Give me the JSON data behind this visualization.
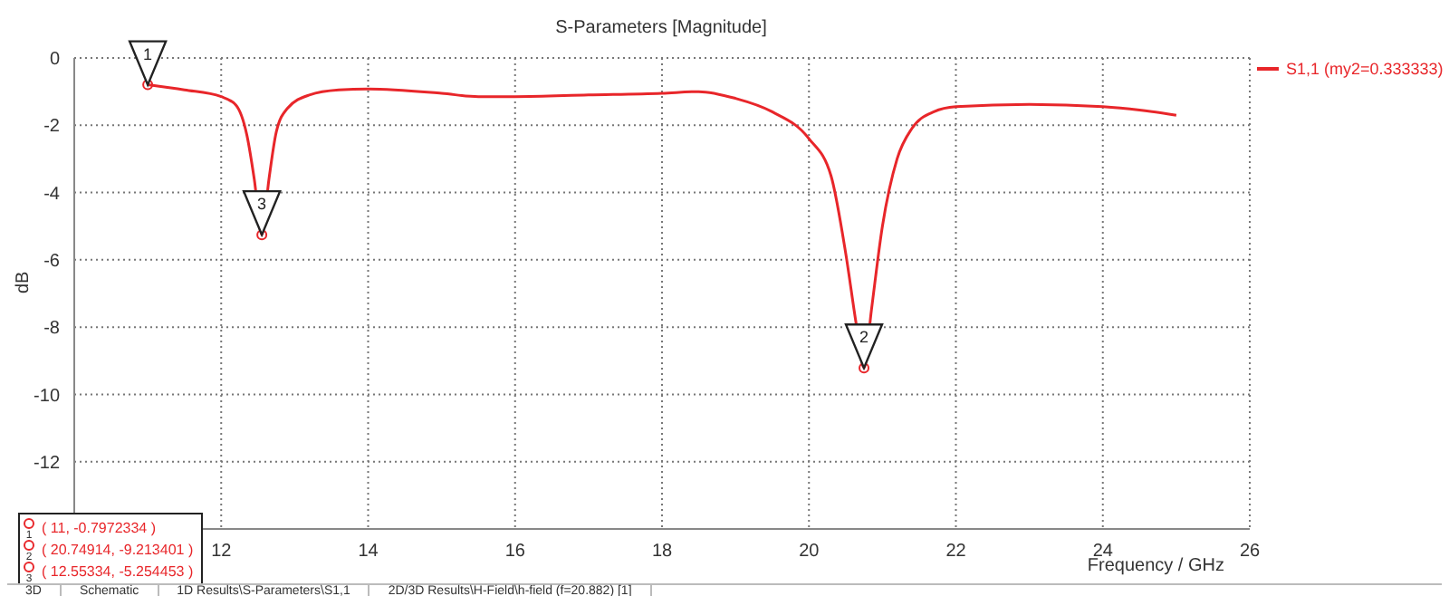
{
  "chart_data": {
    "type": "line",
    "title": "S-Parameters [Magnitude]",
    "xlabel": "Frequency / GHz",
    "ylabel": "dB",
    "x": [
      11,
      11.5,
      12,
      12.2,
      12.35,
      12.45,
      12.55334,
      12.65,
      12.75,
      12.9,
      13.2,
      13.6,
      14,
      15,
      15.5,
      16,
      17,
      18,
      18.5,
      19,
      19.5,
      20,
      20.3,
      20.5,
      20.65,
      20.74914,
      20.85,
      21,
      21.2,
      21.4,
      21.7,
      22,
      23,
      24,
      24.5,
      25
    ],
    "series": [
      {
        "name": "S1,1 (my2=0.333333)",
        "color": "#e8262a",
        "values": [
          -0.7972334,
          -0.95,
          -1.15,
          -1.4,
          -2.3,
          -3.6,
          -5.254453,
          -3.6,
          -2.2,
          -1.5,
          -1.1,
          -0.95,
          -0.92,
          -1.05,
          -1.15,
          -1.15,
          -1.1,
          -1.05,
          -1.0,
          -1.2,
          -1.6,
          -2.4,
          -3.5,
          -5.8,
          -8.0,
          -9.213401,
          -7.5,
          -5.0,
          -3.0,
          -2.1,
          -1.6,
          -1.45,
          -1.38,
          -1.45,
          -1.55,
          -1.7
        ]
      }
    ],
    "xlim": [
      10,
      26
    ],
    "xticks": [
      12,
      14,
      16,
      18,
      20,
      22,
      24,
      26
    ],
    "ylim": [
      -14,
      0
    ],
    "yticks": [
      0,
      -2,
      -4,
      -6,
      -8,
      -10,
      -12
    ],
    "grid": true,
    "legend": "top right",
    "marker": "none",
    "line_style": "solid",
    "annotations": [
      {
        "text": "1",
        "x": 11,
        "y": -0.7972334
      },
      {
        "text": "2",
        "x": 20.74914,
        "y": -9.213401
      },
      {
        "text": "3",
        "x": 12.55334,
        "y": -5.254453
      },
      "( 11, -0.7972334 )",
      "( 20.74914, -9.213401 )",
      "( 12.55334, -5.254453 )",
      "3D",
      "Schematic",
      "1D Results\\S-Parameters\\S1,1",
      "2D/3D Results\\H-Field\\h-field (f=20.882) [1]"
    ]
  }
}
